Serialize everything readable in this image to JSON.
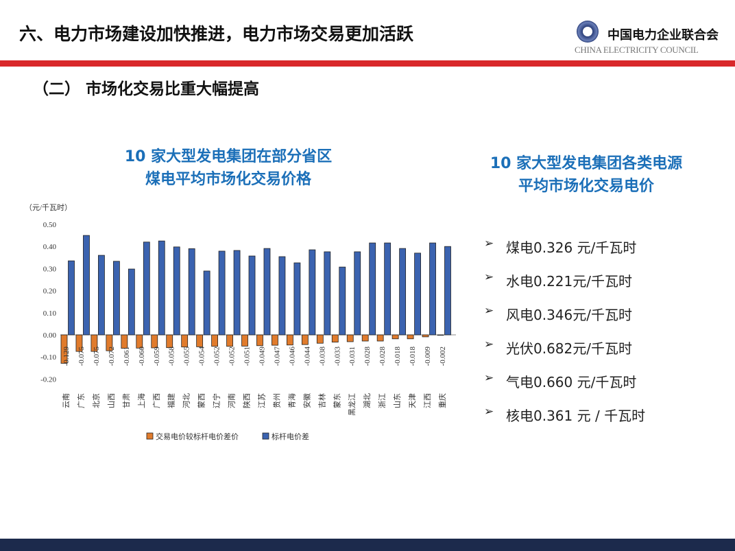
{
  "header": {
    "title": "六、电力市场建设加快推进，电力市场交易更加活跃",
    "logo_cn": "中国电力企业联合会",
    "logo_en": "CHINA ELECTRICITY COUNCIL",
    "accent_color": "#d9282a"
  },
  "subtitle": "（二） 市场化交易比重大幅提高",
  "left_title": [
    "10 家大型发电集团在部分省区",
    "煤电平均市场化交易价格"
  ],
  "right_title": [
    "10 家大型发电集团各类电源",
    "平均市场化交易电价"
  ],
  "bullets": [
    {
      "icon": "arrow-right-icon",
      "text": "煤电0.326 元/千瓦时"
    },
    {
      "icon": "arrow-right-icon",
      "text": "水电0.221元/千瓦时"
    },
    {
      "icon": "arrow-right-icon",
      "text": "风电0.346元/千瓦时"
    },
    {
      "icon": "arrow-right-icon",
      "text": "光伏0.682元/千瓦时"
    },
    {
      "icon": "arrow-right-icon",
      "text": "气电0.660 元/千瓦时"
    },
    {
      "icon": "arrow-right-icon",
      "text": "核电0.361 元 / 千瓦时"
    }
  ],
  "chart_data": {
    "type": "bar",
    "unit_label": "（元/千瓦时）",
    "ylim": [
      -0.2,
      0.5
    ],
    "yticks": [
      "0.50",
      "0.40",
      "0.30",
      "0.20",
      "0.10",
      "0.00",
      "-0.10",
      "-0.20"
    ],
    "grid": false,
    "legend_position": "bottom",
    "categories": [
      "云南",
      "广东",
      "北京",
      "山西",
      "甘肃",
      "上海",
      "广西",
      "福建",
      "河北",
      "蒙西",
      "辽宁",
      "河南",
      "陕西",
      "江苏",
      "贵州",
      "青海",
      "安徽",
      "吉林",
      "蒙东",
      "黑龙江",
      "湖北",
      "浙江",
      "山东",
      "天津",
      "江西",
      "重庆"
    ],
    "series": [
      {
        "name": "交易电价较标杆电价差价",
        "color": "#e07b2c",
        "values": [
          -0.129,
          -0.075,
          -0.075,
          -0.072,
          -0.061,
          -0.06,
          -0.059,
          -0.058,
          -0.055,
          -0.054,
          -0.052,
          -0.052,
          -0.051,
          -0.049,
          -0.047,
          -0.046,
          -0.044,
          -0.038,
          -0.033,
          -0.031,
          -0.028,
          -0.028,
          -0.018,
          -0.018,
          -0.009,
          -0.002
        ],
        "labels": [
          "-0.129",
          "-0.075",
          "-0.075",
          "-0.072",
          "-0.061",
          "-0.060",
          "-0.059",
          "-0.058",
          "-0.055",
          "-0.054",
          "-0.052",
          "-0.052",
          "-0.051",
          "-0.049",
          "-0.047",
          "-0.046",
          "-0.044",
          "-0.038",
          "-0.033",
          "-0.031",
          "-0.028",
          "-0.028",
          "-0.018",
          "-0.018",
          "-0.009",
          "-0.002"
        ]
      },
      {
        "name": "标杆电价差",
        "color": "#3b63b0",
        "values": [
          0.335,
          0.45,
          0.36,
          0.333,
          0.298,
          0.42,
          0.425,
          0.398,
          0.39,
          0.289,
          0.379,
          0.382,
          0.357,
          0.391,
          0.354,
          0.326,
          0.385,
          0.376,
          0.307,
          0.376,
          0.416,
          0.416,
          0.391,
          0.37,
          0.416,
          0.4
        ]
      }
    ]
  }
}
